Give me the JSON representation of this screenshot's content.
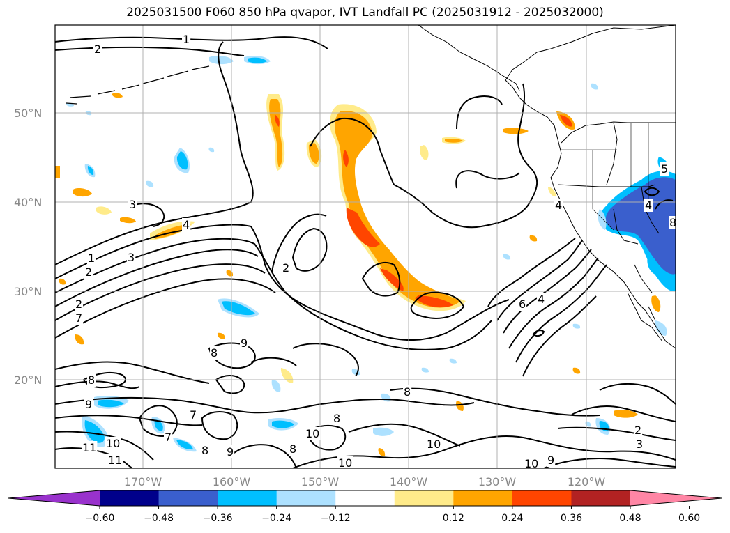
{
  "title": "2025031500 F060 850 hPa qvapor, IVT Landfall PC (2025031912 - 2025032000)",
  "lat_labels": [
    "50°N",
    "40°N",
    "30°N",
    "20°N"
  ],
  "lon_labels": [
    "170°W",
    "160°W",
    "150°W",
    "140°W",
    "130°W",
    "120°W"
  ],
  "colorbar": {
    "colors": [
      "#9932CC",
      "#00008B",
      "#3A5FCD",
      "#00BFFF",
      "#ADE1FF",
      "#FFFFFF",
      "#FFEB8A",
      "#FFA500",
      "#FF4500",
      "#B22222",
      "#FF86A5"
    ],
    "tick_labels": [
      "−0.60",
      "−0.48",
      "−0.36",
      "−0.24",
      "−0.12",
      "0.12",
      "0.24",
      "0.36",
      "0.48",
      "0.60"
    ]
  },
  "contour_labels": [
    "1",
    "2",
    "1",
    "2",
    "3",
    "3",
    "2",
    "2",
    "3",
    "4",
    "4",
    "4",
    "5",
    "6",
    "4",
    "7",
    "8",
    "9",
    "9",
    "8",
    "8",
    "8",
    "7",
    "7",
    "8",
    "9",
    "10",
    "11",
    "11",
    "10",
    "10",
    "10",
    "9",
    "10",
    "8",
    "2",
    "3",
    "8"
  ]
}
